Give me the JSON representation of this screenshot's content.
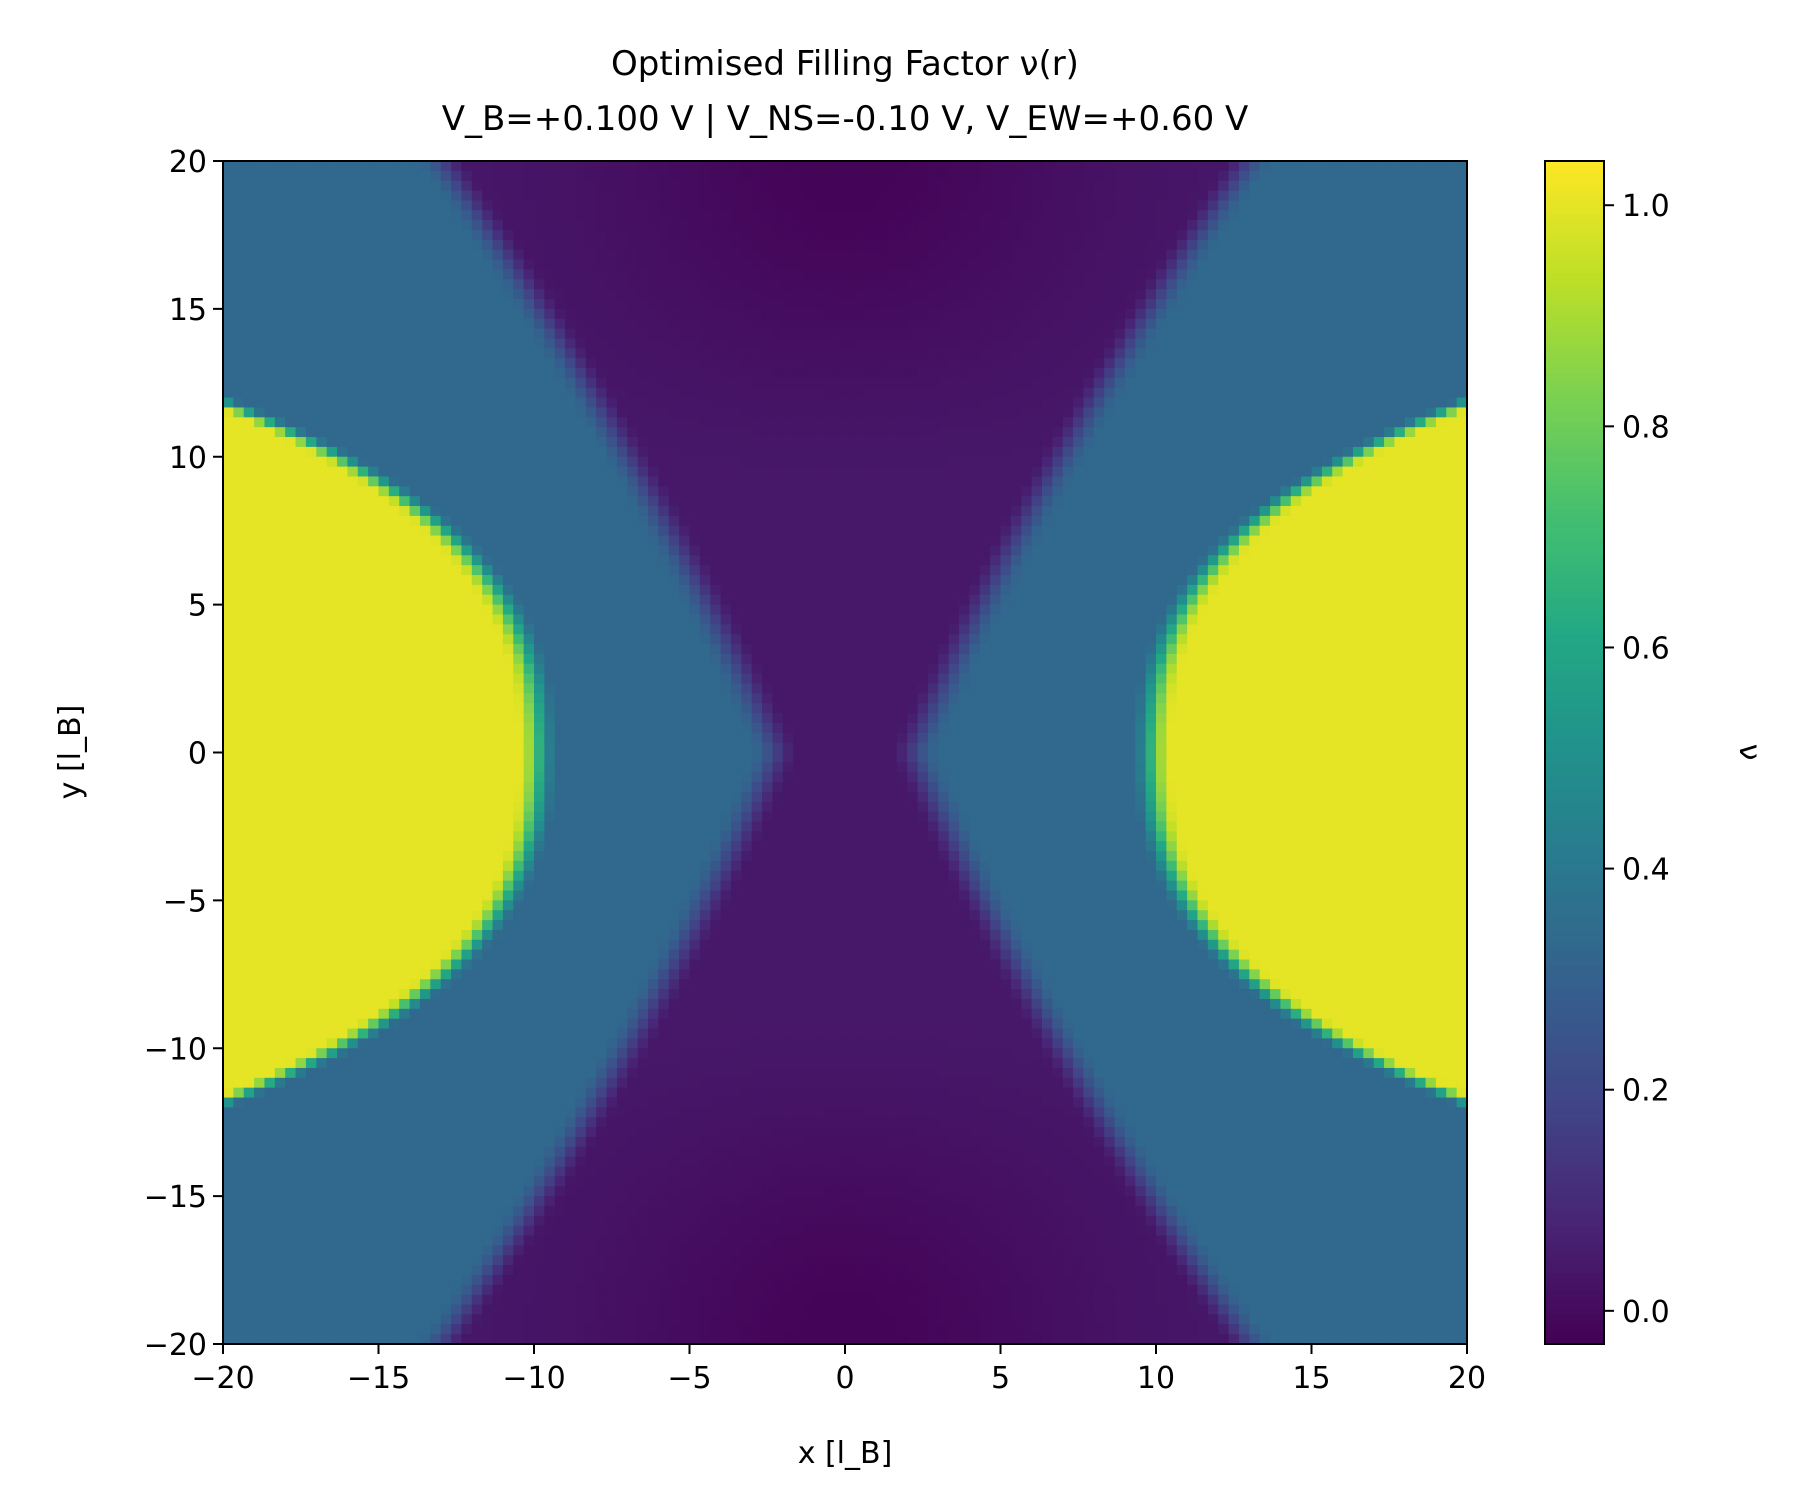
{
  "chart_data": {
    "type": "heatmap",
    "title_line1": "Optimised Filling Factor ν(r)",
    "title_line2": "V_B=+0.100 V  |  V_NS=-0.10 V, V_EW=+0.60 V",
    "xlabel": "x [l_B]",
    "ylabel": "y [l_B]",
    "xlim": [
      -20,
      20
    ],
    "ylim": [
      -20,
      20
    ],
    "x_ticks": [
      -20,
      -15,
      -10,
      -5,
      0,
      5,
      10,
      15,
      20
    ],
    "x_tick_labels": [
      "−20",
      "−15",
      "−10",
      "−5",
      "0",
      "5",
      "10",
      "15",
      "20"
    ],
    "y_ticks": [
      -20,
      -15,
      -10,
      -5,
      0,
      5,
      10,
      15,
      20
    ],
    "y_tick_labels": [
      "−20",
      "−15",
      "−10",
      "−5",
      "0",
      "5",
      "10",
      "15",
      "20"
    ],
    "colormap": "viridis",
    "colorbar": {
      "label": "ν",
      "vmin": -0.03,
      "vmax": 1.04,
      "ticks": [
        0.0,
        0.2,
        0.4,
        0.6,
        0.8,
        1.0
      ],
      "tick_labels": [
        "0.0",
        "0.2",
        "0.4",
        "0.6",
        "0.8",
        "1.0"
      ]
    },
    "grid": false,
    "field_description": {
      "left_lobe_center_x": -20,
      "right_lobe_center_x": 20,
      "lobe_value": 1.0,
      "band_value": 0.33,
      "background_value": 0.04,
      "top_bottom_min_value": -0.02,
      "constriction_gap_half_width": 2.0,
      "lobe_vertex_x": 9.7,
      "band_vertex_x": 2.4
    }
  }
}
